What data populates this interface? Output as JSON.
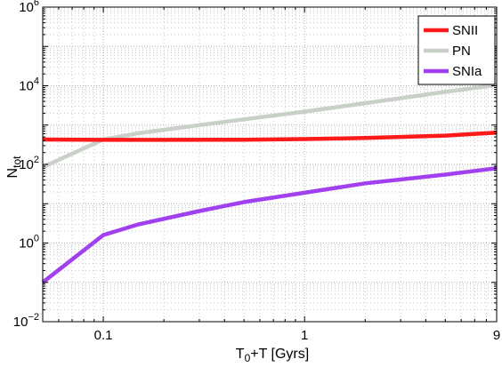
{
  "chart_data": {
    "type": "line",
    "xlabel_main": "T",
    "xlabel_sub": "0",
    "xlabel_rest": "+T [Gyrs]",
    "ylabel_main": "N",
    "ylabel_sub": "tot",
    "x_scale": "log",
    "y_scale": "log",
    "xlim": [
      0.05,
      9
    ],
    "ylim": [
      0.01,
      1000000
    ],
    "x_ticks": [
      {
        "value": 0.1,
        "label": "0.1"
      },
      {
        "value": 1,
        "label": "1"
      },
      {
        "value": 9,
        "label": "9"
      }
    ],
    "y_ticks": [
      {
        "value": 0.01,
        "base": "10",
        "exp": "−2"
      },
      {
        "value": 1,
        "base": "10",
        "exp": "0"
      },
      {
        "value": 100,
        "base": "10",
        "exp": "2"
      },
      {
        "value": 10000,
        "base": "10",
        "exp": "4"
      },
      {
        "value": 1000000,
        "base": "10",
        "exp": "6"
      }
    ],
    "grid": true,
    "legend_position": "top-right",
    "series": [
      {
        "name": "SNII",
        "color": "#ff1a1a",
        "x": [
          0.05,
          0.1,
          0.2,
          0.5,
          1,
          2,
          5,
          9
        ],
        "y": [
          430,
          420,
          420,
          425,
          440,
          470,
          540,
          640
        ]
      },
      {
        "name": "PN",
        "color": "#c8d0c8",
        "x": [
          0.05,
          0.1,
          0.15,
          0.3,
          0.5,
          1,
          2,
          5,
          9
        ],
        "y": [
          85,
          430,
          620,
          1000,
          1400,
          2200,
          3600,
          7000,
          10500
        ]
      },
      {
        "name": "SNIa",
        "color": "#a040ee",
        "x": [
          0.05,
          0.1,
          0.15,
          0.3,
          0.5,
          1,
          2,
          5,
          9
        ],
        "y": [
          0.1,
          1.6,
          3,
          6.5,
          11,
          19,
          33,
          55,
          80
        ]
      }
    ]
  }
}
